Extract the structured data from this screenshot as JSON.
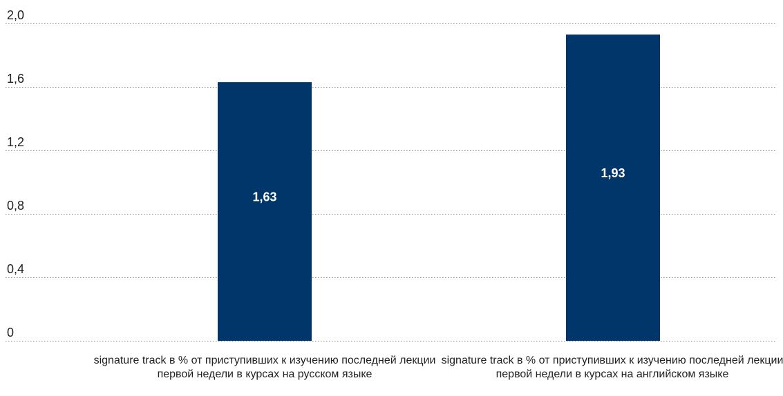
{
  "chart_data": {
    "type": "bar",
    "title": "",
    "xlabel": "",
    "ylabel": "",
    "categories": [
      "signature track в % от приступивших к изучению последней лекции первой недели в курсах на русском языке",
      "signature track в % от приступивших к изучению последней лекции первой недели в курсах на английском языке"
    ],
    "values": [
      1.63,
      1.93
    ],
    "value_labels": [
      "1,63",
      "1,93"
    ],
    "ylim": [
      0,
      2.0
    ],
    "y_ticks": [
      0,
      0.4,
      0.8,
      1.2,
      1.6,
      2.0
    ],
    "y_tick_labels": [
      "0",
      "0,4",
      "0,8",
      "1,2",
      "1,6",
      "2,0"
    ],
    "grid": true,
    "legend": "none",
    "bar_color": "#00366a",
    "label_color": "#ffffff"
  }
}
